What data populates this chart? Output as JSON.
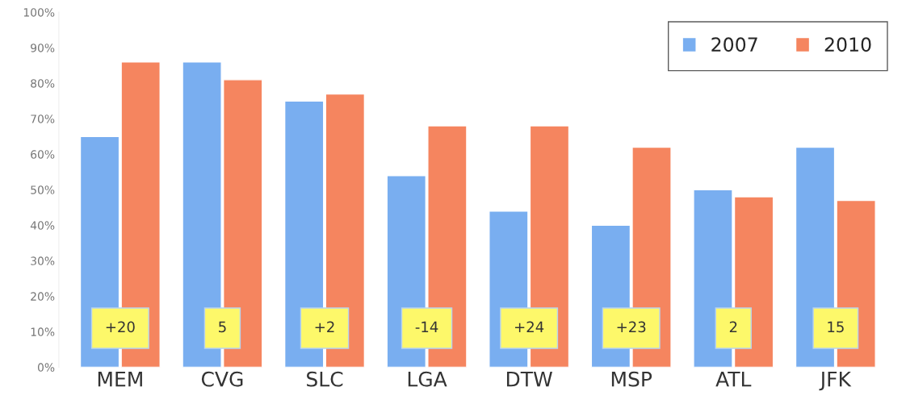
{
  "chart_data": {
    "type": "bar",
    "categories": [
      "MEM",
      "CVG",
      "SLC",
      "LGA",
      "DTW",
      "MSP",
      "ATL",
      "JFK"
    ],
    "series": [
      {
        "name": "2007",
        "color": "#79aef0",
        "values": [
          65,
          86,
          75,
          54,
          44,
          40,
          50,
          62
        ]
      },
      {
        "name": "2010",
        "color": "#f5855f",
        "values": [
          86,
          81,
          77,
          68,
          68,
          62,
          48,
          47
        ]
      }
    ],
    "ylim": [
      0,
      100
    ],
    "yticks": [
      {
        "value": 0,
        "label": "0%"
      },
      {
        "value": 10,
        "label": "10%"
      },
      {
        "value": 20,
        "label": "20%"
      },
      {
        "value": 30,
        "label": "30%"
      },
      {
        "value": 40,
        "label": "40%"
      },
      {
        "value": 50,
        "label": "50%"
      },
      {
        "value": 60,
        "label": "60%"
      },
      {
        "value": 70,
        "label": "70%"
      },
      {
        "value": 80,
        "label": "80%"
      },
      {
        "value": 90,
        "label": "90%"
      },
      {
        "value": 100,
        "label": "100%"
      }
    ],
    "annotations": [
      {
        "text": "+20",
        "x": "MEM",
        "y": 11
      },
      {
        "text": "5",
        "x": "CVG",
        "y": 11
      },
      {
        "text": "+2",
        "x": "SLC",
        "y": 11
      },
      {
        "text": "-14",
        "x": "LGA",
        "y": 11
      },
      {
        "text": "+24",
        "x": "DTW",
        "y": 11
      },
      {
        "text": "+23",
        "x": "MSP",
        "y": 11
      },
      {
        "text": "2",
        "x": "ATL",
        "y": 11
      },
      {
        "text": "15",
        "x": "JFK",
        "y": 11
      }
    ],
    "legend": "top right",
    "grid": false
  }
}
